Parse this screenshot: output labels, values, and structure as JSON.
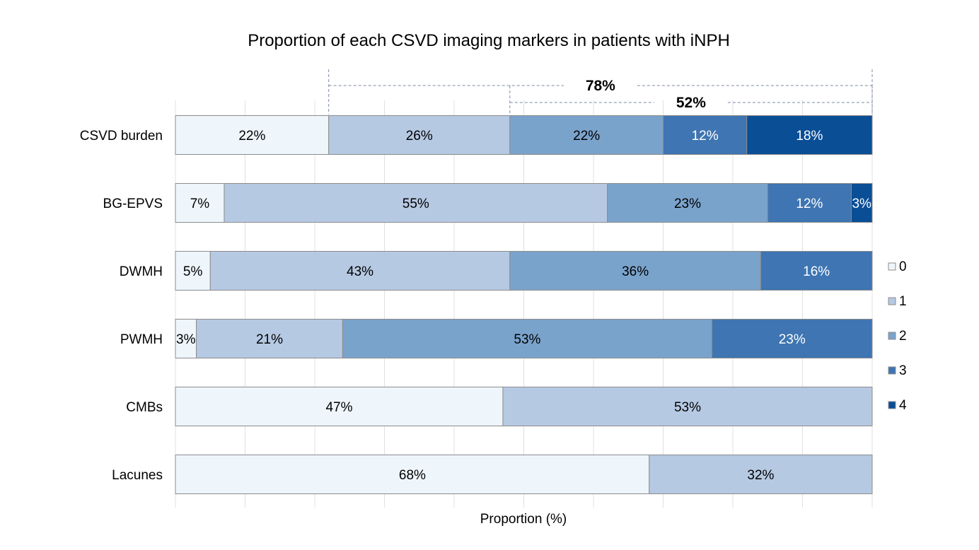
{
  "chart_data": {
    "type": "bar",
    "orientation": "horizontal",
    "stacked": "100%",
    "title": "Proportion of each CSVD imaging markers in patients with iNPH",
    "xlabel": "Proportion (%)",
    "ylabel": "",
    "xlim": [
      0,
      100
    ],
    "grid": true,
    "legend_position": "right",
    "categories": [
      "CSVD burden",
      "BG-EPVS",
      "DWMH",
      "PWMH",
      "CMBs",
      "Lacunes"
    ],
    "series": [
      {
        "name": "0",
        "color": "#eef6fc",
        "values": [
          22,
          7,
          5,
          3,
          47,
          68
        ],
        "labels": [
          "22%",
          "7%",
          "5%",
          "3%",
          "47%",
          "68%"
        ]
      },
      {
        "name": "1",
        "color": "#b6c9e3",
        "values": [
          26,
          55,
          43,
          21,
          53,
          32
        ],
        "labels": [
          "26%",
          "55%",
          "43%",
          "21%",
          "53%",
          "32%"
        ]
      },
      {
        "name": "2",
        "color": "#7aa3cc",
        "values": [
          22,
          23,
          36,
          53,
          0,
          0
        ],
        "labels": [
          "22%",
          "23%",
          "36%",
          "53%",
          "",
          ""
        ]
      },
      {
        "name": "3",
        "color": "#3e75b2",
        "values": [
          12,
          12,
          16,
          23,
          0,
          0
        ],
        "labels": [
          "12%",
          "12%",
          "16%",
          "23%",
          "",
          ""
        ]
      },
      {
        "name": "4",
        "color": "#0a4e96",
        "values": [
          18,
          3,
          0,
          0,
          0,
          0
        ],
        "labels": [
          "18%",
          "3%",
          "",
          "",
          "",
          ""
        ]
      }
    ],
    "annotations": [
      {
        "text": "78%",
        "category": "CSVD burden",
        "from_series": "1",
        "to": 100
      },
      {
        "text": "52%",
        "category": "CSVD burden",
        "from_series": "2",
        "to": 100
      }
    ]
  }
}
